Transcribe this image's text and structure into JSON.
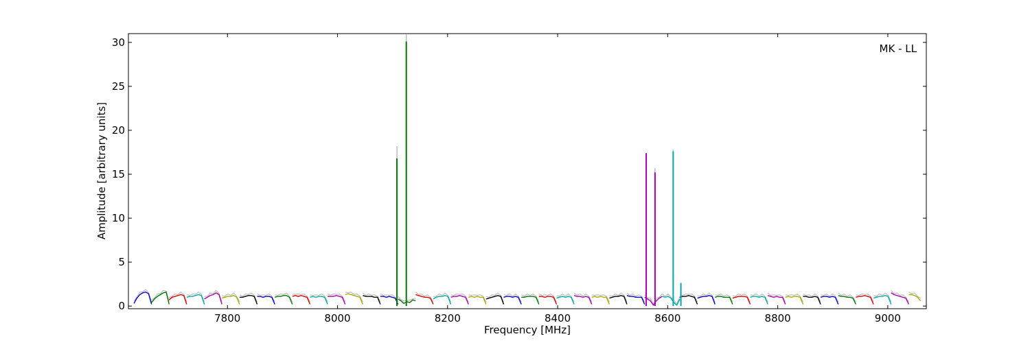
{
  "chart_data": {
    "type": "line",
    "title": "",
    "annotation": "MK - LL",
    "xlabel": "Frequency [MHz]",
    "ylabel": "Amplitude [arbitrary units]",
    "xlim": [
      7620,
      9070
    ],
    "ylim": [
      -0.3,
      31
    ],
    "x_ticks": [
      7800,
      8000,
      8200,
      8400,
      8600,
      8800,
      9000
    ],
    "y_ticks": [
      0,
      5,
      10,
      15,
      20,
      25,
      30
    ],
    "grid": false,
    "legend": "none",
    "raw_color": "#bbbbbb",
    "channel_width_mhz": 32,
    "series": [
      {
        "start": 7630,
        "color": "#0000cc",
        "values": [
          0.3,
          0.9,
          1.3,
          1.5,
          1.6,
          1.4,
          0.2
        ]
      },
      {
        "start": 7662,
        "color": "#007700",
        "values": [
          0.4,
          0.8,
          1.1,
          1.3,
          1.5,
          1.6,
          0.2
        ]
      },
      {
        "start": 7694,
        "color": "#dd0000",
        "values": [
          0.7,
          1.0,
          1.1,
          1.2,
          1.3,
          1.2,
          0.2
        ]
      },
      {
        "start": 7726,
        "color": "#00aaaa",
        "values": [
          1.0,
          1.1,
          1.1,
          1.2,
          1.3,
          1.2,
          0.2
        ]
      },
      {
        "start": 7758,
        "color": "#aa00aa",
        "values": [
          0.8,
          1.0,
          1.2,
          1.3,
          1.5,
          1.3,
          0.2
        ]
      },
      {
        "start": 7790,
        "color": "#aaaa00",
        "values": [
          0.9,
          1.0,
          1.1,
          1.1,
          1.2,
          1.0,
          0.2
        ]
      },
      {
        "start": 7822,
        "color": "#000000",
        "values": [
          1.0,
          1.0,
          1.1,
          1.2,
          1.2,
          1.1,
          0.2
        ]
      },
      {
        "start": 7854,
        "color": "#0000cc",
        "values": [
          1.1,
          1.1,
          1.0,
          1.1,
          1.1,
          1.0,
          0.2
        ]
      },
      {
        "start": 7886,
        "color": "#007700",
        "values": [
          1.0,
          1.1,
          1.1,
          1.2,
          1.2,
          1.0,
          0.2
        ]
      },
      {
        "start": 7918,
        "color": "#dd0000",
        "values": [
          1.1,
          1.2,
          1.1,
          1.2,
          1.1,
          1.0,
          0.2
        ]
      },
      {
        "start": 7950,
        "color": "#00aaaa",
        "values": [
          1.0,
          1.1,
          1.0,
          1.1,
          1.1,
          1.0,
          0.2
        ]
      },
      {
        "start": 7982,
        "color": "#aa00aa",
        "values": [
          1.1,
          1.1,
          1.1,
          1.2,
          1.1,
          1.0,
          0.2
        ]
      },
      {
        "start": 8014,
        "color": "#aaaa00",
        "values": [
          1.3,
          1.4,
          1.3,
          1.2,
          1.1,
          1.0,
          0.2
        ]
      },
      {
        "start": 8046,
        "color": "#000000",
        "values": [
          1.2,
          1.1,
          1.1,
          1.1,
          1.0,
          1.0,
          0.2
        ]
      },
      {
        "start": 8078,
        "color": "#0000cc",
        "values": [
          1.1,
          1.1,
          1.0,
          1.1,
          1.0,
          0.9,
          0.2
        ]
      },
      {
        "start": 8110,
        "color": "#007700",
        "values": [
          0.8,
          0.6,
          0.3,
          0.5,
          0.4,
          0.7,
          0.6
        ]
      },
      {
        "start": 8142,
        "color": "#dd0000",
        "values": [
          1.3,
          1.2,
          1.1,
          1.0,
          1.0,
          0.9,
          0.2
        ]
      },
      {
        "start": 8174,
        "color": "#00aaaa",
        "values": [
          0.8,
          1.0,
          1.1,
          1.1,
          1.2,
          1.1,
          0.2
        ]
      },
      {
        "start": 8206,
        "color": "#aa00aa",
        "values": [
          1.0,
          1.1,
          1.1,
          1.2,
          1.1,
          1.0,
          0.2
        ]
      },
      {
        "start": 8238,
        "color": "#aaaa00",
        "values": [
          1.0,
          1.1,
          1.0,
          1.1,
          1.0,
          1.0,
          0.2
        ]
      },
      {
        "start": 8270,
        "color": "#000000",
        "values": [
          0.8,
          0.9,
          1.0,
          1.1,
          1.2,
          1.1,
          0.2
        ]
      },
      {
        "start": 8302,
        "color": "#0000cc",
        "values": [
          1.0,
          1.1,
          1.1,
          1.0,
          1.1,
          1.0,
          0.2
        ]
      },
      {
        "start": 8334,
        "color": "#007700",
        "values": [
          1.0,
          1.0,
          1.1,
          1.1,
          1.1,
          1.0,
          0.2
        ]
      },
      {
        "start": 8366,
        "color": "#dd0000",
        "values": [
          1.1,
          1.1,
          1.0,
          1.1,
          1.1,
          1.0,
          0.2
        ]
      },
      {
        "start": 8398,
        "color": "#00aaaa",
        "values": [
          0.9,
          1.0,
          1.1,
          1.0,
          1.1,
          1.0,
          0.2
        ]
      },
      {
        "start": 8430,
        "color": "#aa00aa",
        "values": [
          1.2,
          1.1,
          1.1,
          1.0,
          1.1,
          1.0,
          0.2
        ]
      },
      {
        "start": 8462,
        "color": "#aaaa00",
        "values": [
          1.0,
          1.1,
          1.0,
          1.1,
          1.0,
          1.0,
          0.2
        ]
      },
      {
        "start": 8494,
        "color": "#000000",
        "values": [
          0.9,
          1.0,
          1.1,
          1.1,
          1.2,
          1.1,
          0.2
        ]
      },
      {
        "start": 8526,
        "color": "#0000cc",
        "values": [
          1.2,
          1.1,
          1.1,
          1.0,
          1.0,
          1.0,
          0.2
        ]
      },
      {
        "start": 8558,
        "color": "#aa00aa",
        "values": [
          1.0,
          0.8,
          0.6,
          0.1,
          0.6,
          0.9,
          1.1
        ]
      },
      {
        "start": 8590,
        "color": "#00aaaa",
        "values": [
          1.1,
          1.0,
          1.1,
          0.9,
          0.4,
          0.1,
          0.8
        ]
      },
      {
        "start": 8622,
        "color": "#000000",
        "values": [
          1.0,
          1.1,
          1.1,
          1.2,
          1.1,
          1.0,
          0.2
        ]
      },
      {
        "start": 8654,
        "color": "#0000cc",
        "values": [
          0.9,
          1.0,
          1.1,
          1.1,
          1.2,
          1.1,
          0.2
        ]
      },
      {
        "start": 8686,
        "color": "#007700",
        "values": [
          1.0,
          1.1,
          1.1,
          1.0,
          1.0,
          1.0,
          0.2
        ]
      },
      {
        "start": 8718,
        "color": "#dd0000",
        "values": [
          0.9,
          1.0,
          1.1,
          1.1,
          1.1,
          1.0,
          0.2
        ]
      },
      {
        "start": 8750,
        "color": "#00aaaa",
        "values": [
          1.0,
          1.1,
          1.1,
          1.0,
          1.1,
          1.0,
          0.2
        ]
      },
      {
        "start": 8782,
        "color": "#aa00aa",
        "values": [
          1.2,
          1.1,
          1.0,
          1.1,
          1.0,
          1.0,
          0.2
        ]
      },
      {
        "start": 8814,
        "color": "#aaaa00",
        "values": [
          1.0,
          1.1,
          1.0,
          1.1,
          1.1,
          1.0,
          0.2
        ]
      },
      {
        "start": 8846,
        "color": "#000000",
        "values": [
          1.1,
          1.1,
          1.0,
          1.0,
          1.1,
          1.0,
          0.2
        ]
      },
      {
        "start": 8878,
        "color": "#0000cc",
        "values": [
          1.0,
          1.1,
          1.1,
          1.0,
          1.1,
          1.0,
          0.2
        ]
      },
      {
        "start": 8910,
        "color": "#007700",
        "values": [
          1.2,
          1.1,
          1.1,
          1.0,
          1.0,
          0.9,
          0.2
        ]
      },
      {
        "start": 8942,
        "color": "#dd0000",
        "values": [
          1.0,
          1.1,
          1.1,
          1.2,
          1.1,
          1.0,
          0.2
        ]
      },
      {
        "start": 8974,
        "color": "#00aaaa",
        "values": [
          0.9,
          1.0,
          1.1,
          1.1,
          1.2,
          1.1,
          0.2
        ]
      },
      {
        "start": 9006,
        "color": "#aa00aa",
        "values": [
          1.5,
          1.3,
          1.2,
          1.1,
          1.0,
          0.9,
          0.2
        ]
      },
      {
        "start": 9038,
        "color": "#aaaa00",
        "values": [
          1.3,
          1.3,
          1.2,
          1.0,
          0.6
        ]
      }
    ],
    "spikes": [
      {
        "x": 8108,
        "y": 16.8,
        "raw": 18.2,
        "color": "#007700"
      },
      {
        "x": 8125,
        "y": 30.1,
        "raw": 30.9,
        "color": "#007700"
      },
      {
        "x": 8561,
        "y": 17.4,
        "raw": 17.4,
        "color": "#aa00aa"
      },
      {
        "x": 8577,
        "y": 15.2,
        "raw": 15.7,
        "color": "#aa00aa"
      },
      {
        "x": 8610,
        "y": 17.6,
        "raw": 17.8,
        "color": "#00aaaa"
      },
      {
        "x": 8624,
        "y": 2.6,
        "raw": 2.7,
        "color": "#00aaaa"
      }
    ]
  }
}
